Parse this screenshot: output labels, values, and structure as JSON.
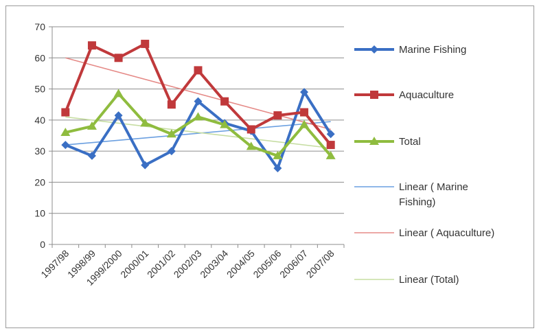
{
  "chart_data": {
    "type": "line",
    "categories": [
      "1997/98",
      "1998/99",
      "1999/2000",
      "2000/01",
      "2001/02",
      "2002/03",
      "2003/04",
      "2004/05",
      "2005/06",
      "2006/07",
      "2007/08"
    ],
    "ylim": [
      0,
      70
    ],
    "yticks": [
      0,
      10,
      20,
      30,
      40,
      50,
      60,
      70
    ],
    "grid": true,
    "legend_position": "right",
    "series": [
      {
        "name": "Marine Fishing",
        "color": "#3a6fc4",
        "marker": "diamond",
        "values": [
          32,
          28.5,
          41.5,
          25.5,
          30,
          46,
          39,
          36.5,
          24.5,
          49,
          35.5
        ]
      },
      {
        "name": "Aquaculture",
        "color": "#c0393b",
        "marker": "square",
        "values": [
          42.5,
          64,
          60,
          64.5,
          45,
          56,
          46,
          37,
          41.5,
          42.5,
          32
        ]
      },
      {
        "name": "Total",
        "color": "#8fbc3f",
        "marker": "triangle",
        "values": [
          36,
          38,
          48.5,
          39,
          35.5,
          41,
          38.5,
          31.5,
          28.5,
          38.5,
          28.5
        ]
      }
    ],
    "trendlines": [
      {
        "name": "Linear ( Marine Fishing)",
        "color": "#6a9fe0",
        "start": 32,
        "end": 39.5
      },
      {
        "name": "Linear ( Aquaculture)",
        "color": "#e58a87",
        "start": 60,
        "end": 37
      },
      {
        "name": "Linear (Total)",
        "color": "#c6dda2",
        "start": 41,
        "end": 31
      }
    ]
  }
}
